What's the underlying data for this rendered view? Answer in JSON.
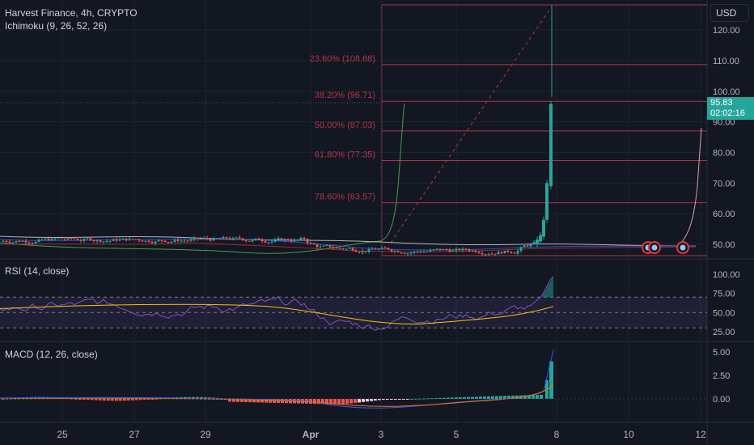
{
  "header": {
    "title": "Harvest Finance, 4h, CRYPTO",
    "indicator": "Ichimoku (9, 26, 52, 26)",
    "currency": "USD"
  },
  "last_price": {
    "value": "95.83",
    "countdown": "02:02:16"
  },
  "colors": {
    "background": "#131722",
    "up": "#26a69a",
    "down": "#ef5350",
    "fib": "#b2354a",
    "rsi": "#7e57c2",
    "rsi_ma": "#ffc107",
    "macd": "#2962ff",
    "signal": "#ff6d00",
    "grid": "#1f2330"
  },
  "price_pane": {
    "y_axis_labels": [
      "120.00",
      "110.00",
      "100.00",
      "90.00",
      "80.00",
      "70.00",
      "60.00",
      "50.00"
    ],
    "fib_levels": [
      {
        "label": "23.60% (108.68)",
        "price": 108.68
      },
      {
        "label": "38.20% (96.71)",
        "price": 96.71
      },
      {
        "label": "50.00% (87.03)",
        "price": 87.03
      },
      {
        "label": "61.80% (77.35)",
        "price": 77.35
      },
      {
        "label": "78.60% (63.57)",
        "price": 63.57
      }
    ]
  },
  "rsi_pane": {
    "legend": "RSI (14, close)",
    "y_axis_labels": [
      "100.00",
      "75.00",
      "50.00",
      "25.00"
    ]
  },
  "macd_pane": {
    "legend": "MACD (12, 26, close)",
    "y_axis_labels": [
      "5.00",
      "2.50",
      "0.00"
    ]
  },
  "time_axis": {
    "labels": [
      "25",
      "27",
      "29",
      "Apr",
      "3",
      "5",
      "8",
      "10",
      "12"
    ]
  },
  "chart_data": {
    "type": "line",
    "title": "Harvest Finance, 4h, CRYPTO",
    "x_ticks": [
      "25",
      "27",
      "29",
      "Apr",
      "3",
      "5",
      "8",
      "10",
      "12"
    ],
    "ylim": [
      45,
      130
    ],
    "series": [
      {
        "name": "close",
        "x": [
          "25",
          "27",
          "29",
          "Apr",
          "3",
          "5",
          "7",
          "8"
        ],
        "values": [
          51,
          51.5,
          52,
          51,
          47.5,
          48,
          49.5,
          95.83
        ]
      }
    ]
  }
}
